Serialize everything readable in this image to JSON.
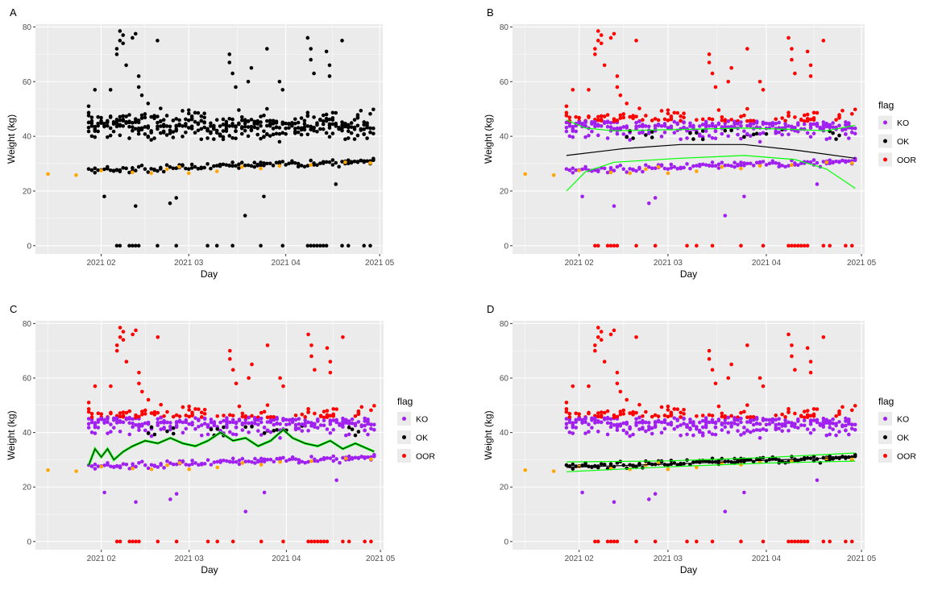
{
  "figure": {
    "legend_title": "flag",
    "legend_entries": [
      {
        "label": "KO",
        "color": "#a020f0"
      },
      {
        "label": "OK",
        "color": "#000000"
      },
      {
        "label": "OOR",
        "color": "#ff0000"
      }
    ],
    "colors": {
      "panel_bg": "#ebebeb",
      "grid": "#ffffff",
      "KO": "#a020f0",
      "OK": "#000000",
      "OOR": "#ff0000",
      "orange": "#ffa500",
      "green": "#00ff00",
      "line": "#000000"
    }
  },
  "chart_data": [
    {
      "panel": "A",
      "type": "scatter",
      "xlabel": "Day",
      "ylabel": "Weight (kg)",
      "xlim": [
        "2021-01-11",
        "2021-05-02"
      ],
      "ylim": [
        -3,
        81
      ],
      "x_ticks": [
        "2021 02",
        "2021 03",
        "2021 04",
        "2021 05"
      ],
      "x_tick_dates": [
        "2021-02-01",
        "2021-03-01",
        "2021-04-01",
        "2021-05-01"
      ],
      "y_ticks": [
        0,
        20,
        40,
        60,
        80
      ],
      "legend": false,
      "color_mode": "all_ok"
    },
    {
      "panel": "B",
      "type": "scatter",
      "xlabel": "Day",
      "ylabel": "Weight (kg)",
      "xlim": [
        "2021-01-11",
        "2021-05-02"
      ],
      "ylim": [
        -3,
        81
      ],
      "x_ticks": [
        "2021 02",
        "2021 03",
        "2021 04",
        "2021 05"
      ],
      "x_tick_dates": [
        "2021-02-01",
        "2021-03-01",
        "2021-04-01",
        "2021-05-01"
      ],
      "y_ticks": [
        0,
        20,
        40,
        60,
        80
      ],
      "legend": true,
      "color_mode": "flag_wide",
      "lines": [
        {
          "color": "#000000",
          "x": [
            "2021-01-28",
            "2021-02-15",
            "2021-03-05",
            "2021-03-25",
            "2021-04-10",
            "2021-04-29"
          ],
          "y": [
            33,
            35.5,
            37,
            37,
            35,
            32
          ]
        },
        {
          "color": "#00ff00",
          "x": [
            "2021-01-28",
            "2021-02-03",
            "2021-02-12",
            "2021-03-05",
            "2021-03-25",
            "2021-04-10",
            "2021-04-20",
            "2021-04-29"
          ],
          "y": [
            46,
            43,
            42,
            42.5,
            43,
            42.5,
            42,
            44
          ]
        },
        {
          "color": "#00ff00",
          "x": [
            "2021-01-28",
            "2021-02-03",
            "2021-02-12",
            "2021-03-05",
            "2021-03-25",
            "2021-04-10",
            "2021-04-20",
            "2021-04-29"
          ],
          "y": [
            20,
            27,
            30.5,
            32,
            33,
            31.5,
            28,
            21
          ]
        }
      ]
    },
    {
      "panel": "C",
      "type": "scatter",
      "xlabel": "Day",
      "ylabel": "Weight (kg)",
      "xlim": [
        "2021-01-11",
        "2021-05-02"
      ],
      "ylim": [
        -3,
        81
      ],
      "x_ticks": [
        "2021 02",
        "2021 03",
        "2021 04",
        "2021 05"
      ],
      "x_tick_dates": [
        "2021-02-01",
        "2021-03-01",
        "2021-04-01",
        "2021-05-01"
      ],
      "y_ticks": [
        0,
        20,
        40,
        60,
        80
      ],
      "legend": true,
      "color_mode": "flag_wide",
      "lines": [
        {
          "color": "#00ff00",
          "width": 3,
          "x": [
            "2021-01-28",
            "2021-01-30",
            "2021-02-01",
            "2021-02-03",
            "2021-02-05",
            "2021-02-08",
            "2021-02-11",
            "2021-02-15",
            "2021-02-19",
            "2021-02-23",
            "2021-02-27",
            "2021-03-03",
            "2021-03-07",
            "2021-03-11",
            "2021-03-15",
            "2021-03-19",
            "2021-03-23",
            "2021-03-27",
            "2021-03-31",
            "2021-04-03",
            "2021-04-07",
            "2021-04-11",
            "2021-04-15",
            "2021-04-19",
            "2021-04-23",
            "2021-04-27",
            "2021-04-29"
          ],
          "y": [
            28,
            34,
            31,
            34,
            30,
            33,
            35,
            37,
            36,
            38,
            36,
            35,
            37,
            40,
            37,
            38,
            35,
            37,
            41,
            38,
            36,
            35,
            37,
            34,
            36,
            34,
            33
          ]
        },
        {
          "color": "#000000",
          "width": 1,
          "x": [
            "2021-01-28",
            "2021-01-30",
            "2021-02-01",
            "2021-02-03",
            "2021-02-05",
            "2021-02-08",
            "2021-02-11",
            "2021-02-15",
            "2021-02-19",
            "2021-02-23",
            "2021-02-27",
            "2021-03-03",
            "2021-03-07",
            "2021-03-11",
            "2021-03-15",
            "2021-03-19",
            "2021-03-23",
            "2021-03-27",
            "2021-03-31",
            "2021-04-03",
            "2021-04-07",
            "2021-04-11",
            "2021-04-15",
            "2021-04-19",
            "2021-04-23",
            "2021-04-27",
            "2021-04-29"
          ],
          "y": [
            28,
            34,
            31,
            34,
            30,
            33,
            35,
            37,
            36,
            38,
            36,
            35,
            37,
            40,
            37,
            38,
            35,
            37,
            41,
            38,
            36,
            35,
            37,
            34,
            36,
            34,
            33
          ]
        }
      ]
    },
    {
      "panel": "D",
      "type": "scatter",
      "xlabel": "Day",
      "ylabel": "Weight (kg)",
      "xlim": [
        "2021-01-11",
        "2021-05-02"
      ],
      "ylim": [
        -3,
        81
      ],
      "x_ticks": [
        "2021 02",
        "2021 03",
        "2021 04",
        "2021 05"
      ],
      "x_tick_dates": [
        "2021-02-01",
        "2021-03-01",
        "2021-04-01",
        "2021-05-01"
      ],
      "y_ticks": [
        0,
        20,
        40,
        60,
        80
      ],
      "legend": true,
      "color_mode": "flag_narrow",
      "lines": [
        {
          "color": "#000000",
          "x": [
            "2021-01-28",
            "2021-03-01",
            "2021-04-01",
            "2021-04-29"
          ],
          "y": [
            27.2,
            28.4,
            29.8,
            31
          ]
        },
        {
          "color": "#00ff00",
          "x": [
            "2021-01-28",
            "2021-03-01",
            "2021-04-01",
            "2021-04-29"
          ],
          "y": [
            29.2,
            29.6,
            30.8,
            32.5
          ]
        },
        {
          "color": "#00ff00",
          "x": [
            "2021-01-28",
            "2021-03-01",
            "2021-04-01",
            "2021-04-29"
          ],
          "y": [
            25.6,
            27.4,
            28.8,
            29.5
          ]
        }
      ]
    }
  ],
  "points": {
    "orange": [
      [
        "2021-01-15",
        26.2
      ],
      [
        "2021-01-24",
        25.8
      ],
      [
        "2021-02-01",
        27.5
      ],
      [
        "2021-02-11",
        26.8
      ],
      [
        "2021-02-17",
        26.5
      ],
      [
        "2021-02-22",
        28
      ],
      [
        "2021-02-26",
        28.8
      ],
      [
        "2021-03-01",
        26.5
      ],
      [
        "2021-03-10",
        27.2
      ],
      [
        "2021-03-18",
        28.8
      ],
      [
        "2021-03-24",
        28.2
      ],
      [
        "2021-03-30",
        29.2
      ],
      [
        "2021-04-09",
        29.5
      ],
      [
        "2021-04-20",
        30.5
      ],
      [
        "2021-04-28",
        30.2
      ]
    ],
    "zeros": [
      "2021-02-06",
      "2021-02-07",
      "2021-02-10",
      "2021-02-11",
      "2021-02-12",
      "2021-02-13",
      "2021-02-19",
      "2021-02-25",
      "2021-03-07",
      "2021-03-10",
      "2021-03-15",
      "2021-03-24",
      "2021-03-31",
      "2021-04-08",
      "2021-04-09",
      "2021-04-10",
      "2021-04-11",
      "2021-04-12",
      "2021-04-13",
      "2021-04-14",
      "2021-04-19",
      "2021-04-21",
      "2021-04-26",
      "2021-04-28"
    ],
    "low_ko": [
      [
        "2021-02-02",
        18
      ],
      [
        "2021-02-12",
        14.5
      ],
      [
        "2021-02-23",
        15.5
      ],
      [
        "2021-02-25",
        17.5
      ],
      [
        "2021-03-19",
        11
      ],
      [
        "2021-03-25",
        18
      ],
      [
        "2021-04-17",
        22.5
      ]
    ],
    "tall_oor": [
      [
        "2021-02-06",
        70
      ],
      [
        "2021-02-06",
        72
      ],
      [
        "2021-02-07",
        75
      ],
      [
        "2021-02-07",
        78.5
      ],
      [
        "2021-02-08",
        74
      ],
      [
        "2021-02-08",
        77
      ],
      [
        "2021-02-09",
        66
      ],
      [
        "2021-02-11",
        76
      ],
      [
        "2021-02-12",
        77.5
      ],
      [
        "2021-02-13",
        62
      ],
      [
        "2021-02-13",
        58
      ],
      [
        "2021-02-14",
        55
      ],
      [
        "2021-02-16",
        52
      ],
      [
        "2021-02-19",
        75
      ],
      [
        "2021-03-14",
        70
      ],
      [
        "2021-03-14",
        67
      ],
      [
        "2021-03-15",
        63
      ],
      [
        "2021-03-16",
        58
      ],
      [
        "2021-03-20",
        60
      ],
      [
        "2021-03-21",
        65
      ],
      [
        "2021-03-26",
        72
      ],
      [
        "2021-03-30",
        60
      ],
      [
        "2021-03-31",
        57
      ],
      [
        "2021-04-08",
        76
      ],
      [
        "2021-04-09",
        72
      ],
      [
        "2021-04-09",
        68
      ],
      [
        "2021-04-10",
        63
      ],
      [
        "2021-04-14",
        71
      ],
      [
        "2021-04-15",
        66
      ],
      [
        "2021-04-15",
        62
      ],
      [
        "2021-04-19",
        75
      ],
      [
        "2021-02-04",
        57
      ],
      [
        "2021-01-28",
        51
      ],
      [
        "2021-01-30",
        57
      ]
    ]
  }
}
